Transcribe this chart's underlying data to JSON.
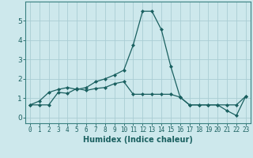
{
  "xlabel": "Humidex (Indice chaleur)",
  "ylabel": "",
  "background_color": "#cde8ec",
  "grid_color": "#aacdd4",
  "line_color": "#1a6060",
  "spine_color": "#3a8080",
  "x_values": [
    0,
    1,
    2,
    3,
    4,
    5,
    6,
    7,
    8,
    9,
    10,
    11,
    12,
    13,
    14,
    15,
    16,
    17,
    18,
    19,
    20,
    21,
    22,
    23
  ],
  "line1_y": [
    0.65,
    0.85,
    1.3,
    1.45,
    1.55,
    1.45,
    1.55,
    1.85,
    2.0,
    2.2,
    2.45,
    3.75,
    5.5,
    5.5,
    4.55,
    2.65,
    1.05,
    0.65,
    0.65,
    0.65,
    0.65,
    0.65,
    0.65,
    1.1
  ],
  "line2_y": [
    0.65,
    0.65,
    0.65,
    1.3,
    1.25,
    1.5,
    1.4,
    1.5,
    1.55,
    1.75,
    1.85,
    1.2,
    1.2,
    1.2,
    1.2,
    1.2,
    1.05,
    0.65,
    0.65,
    0.65,
    0.65,
    0.35,
    0.1,
    1.1
  ],
  "xlim": [
    -0.5,
    23.5
  ],
  "ylim": [
    -0.3,
    6.0
  ],
  "yticks": [
    0,
    1,
    2,
    3,
    4,
    5
  ],
  "xticks": [
    0,
    1,
    2,
    3,
    4,
    5,
    6,
    7,
    8,
    9,
    10,
    11,
    12,
    13,
    14,
    15,
    16,
    17,
    18,
    19,
    20,
    21,
    22,
    23
  ],
  "tick_fontsize": 5.5,
  "xlabel_fontsize": 7,
  "ytick_fontsize": 6.5
}
